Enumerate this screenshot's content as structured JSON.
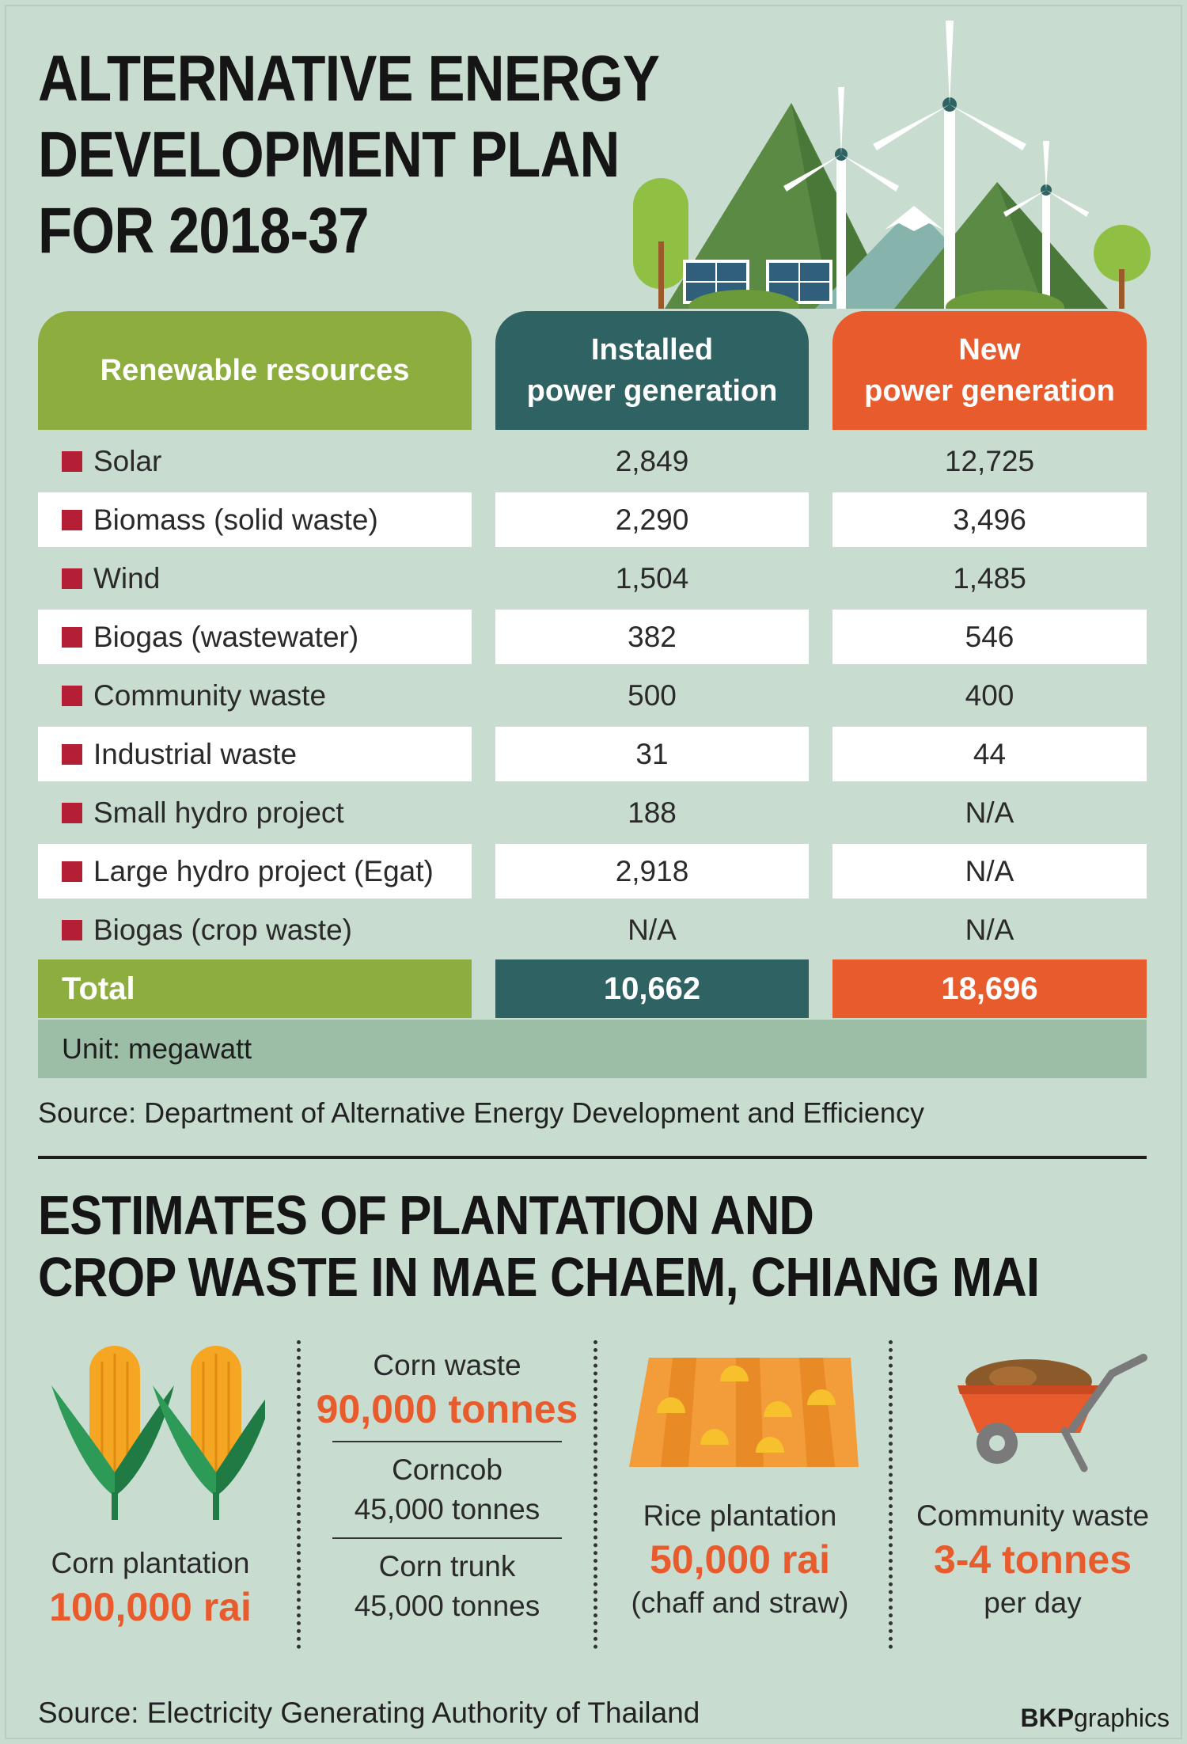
{
  "title_lines": [
    "ALTERNATIVE ENERGY",
    "DEVELOPMENT PLAN",
    "FOR 2018-37"
  ],
  "chart_data": {
    "type": "table",
    "title": "ALTERNATIVE ENERGY DEVELOPMENT PLAN FOR 2018-37",
    "columns": [
      "Renewable resources",
      "Installed power generation",
      "New power generation"
    ],
    "header_lines": {
      "resources": "Renewable resources",
      "installed": [
        "Installed",
        "power generation"
      ],
      "new": [
        "New",
        "power generation"
      ]
    },
    "rows": [
      {
        "resource": "Solar",
        "installed": "2,849",
        "new": "12,725"
      },
      {
        "resource": "Biomass (solid waste)",
        "installed": "2,290",
        "new": "3,496"
      },
      {
        "resource": "Wind",
        "installed": "1,504",
        "new": "1,485"
      },
      {
        "resource": "Biogas (wastewater)",
        "installed": "382",
        "new": "546"
      },
      {
        "resource": "Community waste",
        "installed": "500",
        "new": "400"
      },
      {
        "resource": "Industrial waste",
        "installed": "31",
        "new": "44"
      },
      {
        "resource": "Small hydro project",
        "installed": "188",
        "new": "N/A"
      },
      {
        "resource": "Large hydro project (Egat)",
        "installed": "2,918",
        "new": "N/A"
      },
      {
        "resource": "Biogas (crop waste)",
        "installed": "N/A",
        "new": "N/A"
      }
    ],
    "total": {
      "label": "Total",
      "installed": "10,662",
      "new": "18,696"
    },
    "unit": "Unit: megawatt",
    "source": "Source: Department of Alternative Energy Development and Efficiency"
  },
  "section2": {
    "title_lines": [
      "ESTIMATES OF PLANTATION AND",
      "CROP WASTE IN MAE CHAEM, CHIANG MAI"
    ],
    "corn": {
      "label": "Corn plantation",
      "value": "100,000 rai"
    },
    "corn_waste": {
      "label": "Corn waste",
      "value": "90,000 tonnes",
      "corncob_label": "Corncob",
      "corncob_value": "45,000 tonnes",
      "trunk_label": "Corn trunk",
      "trunk_value": "45,000 tonnes"
    },
    "rice": {
      "label": "Rice plantation",
      "value": "50,000 rai",
      "note": "(chaff and straw)"
    },
    "community": {
      "label": "Community waste",
      "value": "3-4 tonnes",
      "note": "per day"
    },
    "source": "Source: Electricity Generating Authority of Thailand"
  },
  "credit": {
    "bold": "BKP",
    "rest": "graphics"
  },
  "colors": {
    "green": "#8ead3f",
    "teal": "#2f6363",
    "orange": "#e85b2d",
    "marker": "#b51f36",
    "background": "#c9dcd0"
  }
}
